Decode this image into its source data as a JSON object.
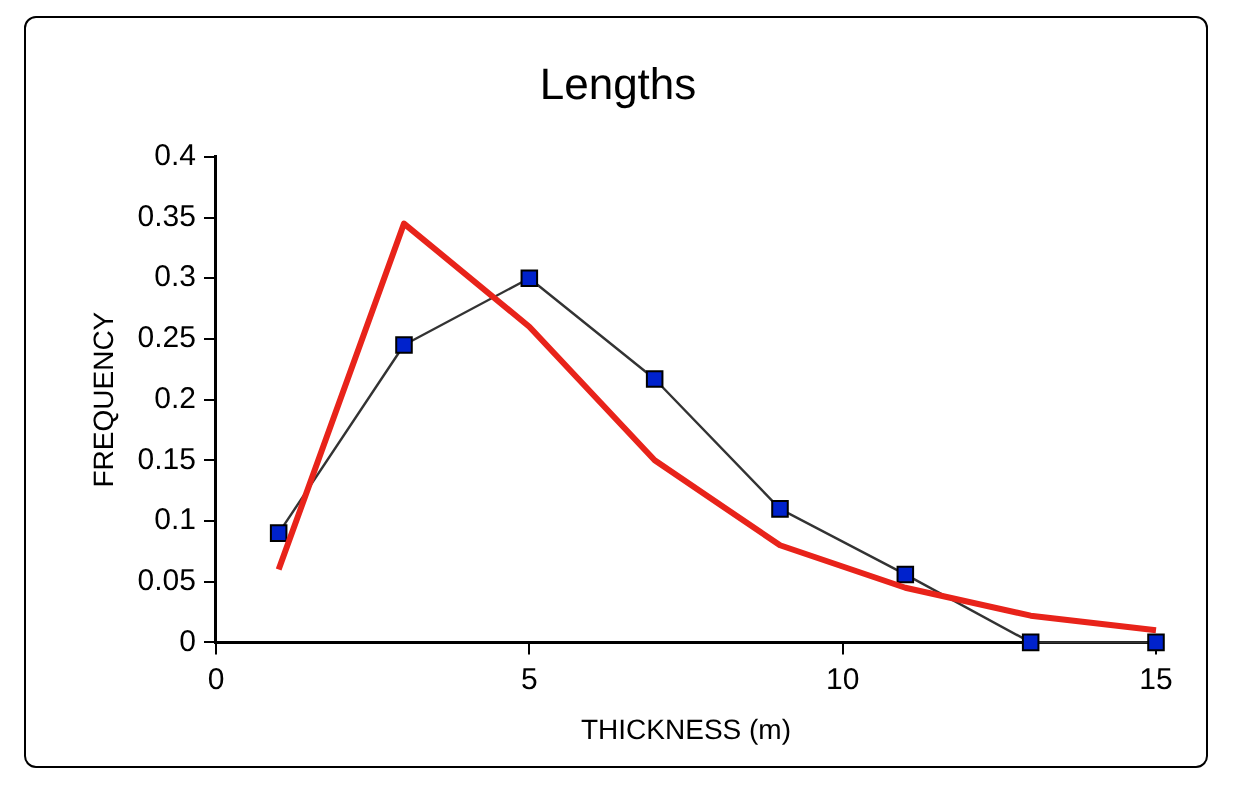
{
  "chart_data": {
    "type": "line",
    "title": "Lengths",
    "xlabel": "THICKNESS (m)",
    "ylabel": "FREQUENCY",
    "x": [
      1,
      3,
      5,
      7,
      9,
      11,
      13,
      15
    ],
    "series": [
      {
        "color": "#0022cc",
        "marker": "square",
        "values": [
          0.09,
          0.245,
          0.3,
          0.217,
          0.11,
          0.056,
          0,
          0
        ]
      },
      {
        "color": "#e8231a",
        "marker": "none",
        "values": [
          0.06,
          0.345,
          0.26,
          0.15,
          0.08,
          0.045,
          0.022,
          0.01
        ]
      }
    ],
    "xlim": [
      0,
      15
    ],
    "xticks": [
      0,
      5,
      10,
      15
    ],
    "ylim": [
      0,
      0.4
    ],
    "yticks": [
      0,
      0.05,
      0.1,
      0.15,
      0.2,
      0.25,
      0.3,
      0.35,
      0.4
    ],
    "grid": false,
    "legend": false
  }
}
